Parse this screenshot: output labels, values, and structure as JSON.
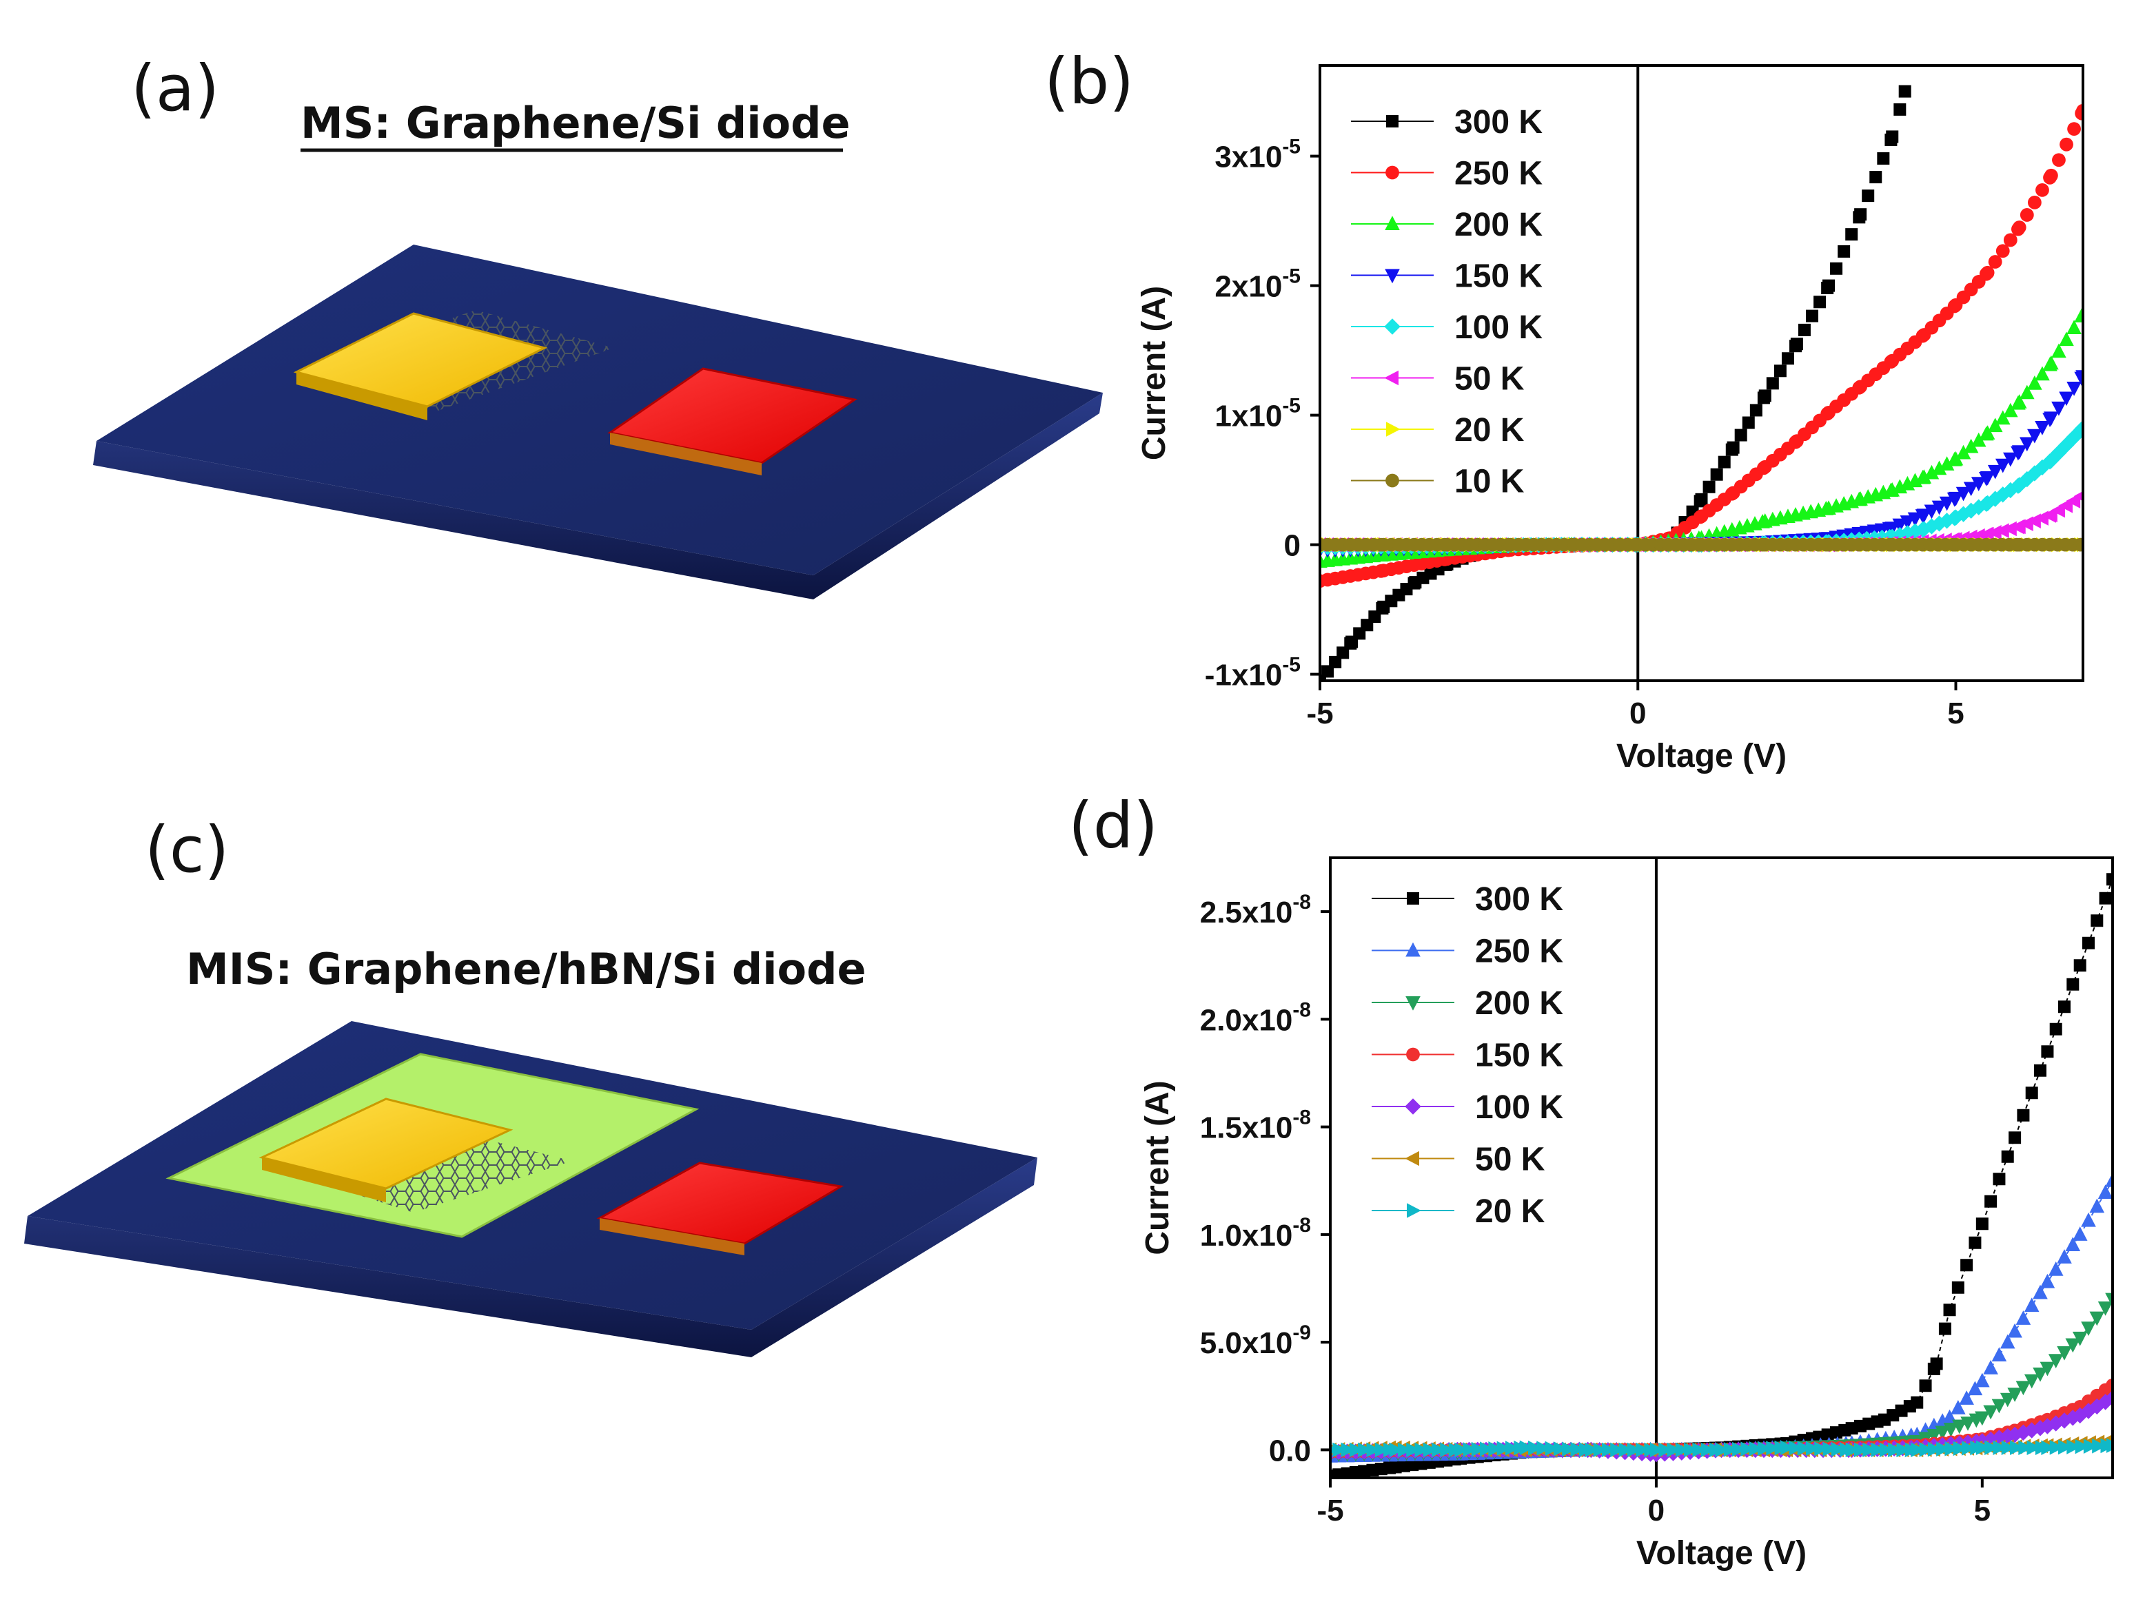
{
  "panels": {
    "a": {
      "label": "(a)",
      "title": "MS: Graphene/Si diode"
    },
    "b": {
      "label": "(b)"
    },
    "c": {
      "label": "(c)",
      "title": "MIS: Graphene/hBN/Si diode"
    },
    "d": {
      "label": "(d)"
    }
  },
  "colors": {
    "substrate": "#1b2a6b",
    "gold": "#f5c518",
    "red": "#ff1a1a",
    "hbn": "#b4f06a",
    "graphene": "#5a6470"
  },
  "chart_data": [
    {
      "panel": "b",
      "type": "scatter",
      "title": "",
      "xlabel": "Voltage (V)",
      "ylabel": "Current (A)",
      "xlim": [
        -5,
        7
      ],
      "ylim": [
        -1.05e-05,
        3.7e-05
      ],
      "xticks": [
        -5,
        0,
        5
      ],
      "xtick_labels": [
        "-5",
        "0",
        "5"
      ],
      "yticks": [
        -1e-05,
        0,
        1e-05,
        2e-05,
        3e-05
      ],
      "ytick_labels": [
        {
          "mant": "-1x10",
          "exp": "-5"
        },
        {
          "mant": "0",
          "exp": ""
        },
        {
          "mant": "1x10",
          "exp": "-5"
        },
        {
          "mant": "2x10",
          "exp": "-5"
        },
        {
          "mant": "3x10",
          "exp": "-5"
        }
      ],
      "legend": "top-left",
      "series": [
        {
          "name": "300 K",
          "color": "#000000",
          "marker": "square",
          "x": [
            -5,
            -4.5,
            -4,
            -3.5,
            -3,
            -2.5,
            -2,
            -1.5,
            -1,
            -0.5,
            0,
            0.5,
            1,
            1.5,
            2,
            2.5,
            3,
            3.5,
            4,
            4.2
          ],
          "y": [
            -1.05e-05,
            -7.5e-06,
            -4.8e-06,
            -2.9e-06,
            -1.5e-06,
            -6e-07,
            -2e-07,
            -5e-08,
            0,
            0,
            0,
            1e-07,
            3.5e-06,
            7.5e-06,
            1.15e-05,
            1.55e-05,
            2e-05,
            2.55e-05,
            3.15e-05,
            3.5e-05
          ]
        },
        {
          "name": "250 K",
          "color": "#ff1a1a",
          "marker": "circle",
          "x": [
            -5,
            -4,
            -3,
            -2,
            -1,
            0,
            0.5,
            1,
            1.5,
            2,
            2.5,
            3,
            3.5,
            4,
            4.5,
            5,
            5.5,
            6,
            6.5,
            7
          ],
          "y": [
            -2.8e-06,
            -2e-06,
            -1.1e-06,
            -4e-07,
            -8e-08,
            0,
            5e-07,
            2.2e-06,
            4e-06,
            6e-06,
            8e-06,
            1.02e-05,
            1.22e-05,
            1.42e-05,
            1.62e-05,
            1.85e-05,
            2.1e-05,
            2.45e-05,
            2.85e-05,
            3.35e-05
          ]
        },
        {
          "name": "200 K",
          "color": "#16f516",
          "marker": "triangle-up",
          "x": [
            -5,
            -4,
            -3,
            -2,
            -1,
            0,
            1,
            2,
            3,
            3.5,
            4,
            4.5,
            5,
            5.5,
            6,
            6.5,
            7
          ],
          "y": [
            -1.3e-06,
            -8e-07,
            -4e-07,
            -1e-07,
            0,
            0,
            5e-07,
            1.8e-06,
            2.8e-06,
            3.5e-06,
            4.2e-06,
            5.2e-06,
            6.6e-06,
            8.6e-06,
            1.1e-05,
            1.4e-05,
            1.78e-05
          ]
        },
        {
          "name": "150 K",
          "color": "#1010f0",
          "marker": "triangle-down",
          "x": [
            -5,
            -3,
            -1,
            0,
            1,
            2,
            3,
            4,
            4.5,
            5,
            5.5,
            6,
            6.5,
            7
          ],
          "y": [
            -4e-07,
            -2e-07,
            0,
            0,
            1e-07,
            2e-07,
            5e-07,
            1.3e-06,
            2.3e-06,
            3.6e-06,
            5.2e-06,
            7.2e-06,
            9.8e-06,
            1.3e-05
          ]
        },
        {
          "name": "100 K",
          "color": "#19e6e6",
          "marker": "diamond",
          "x": [
            -5,
            -3,
            -1,
            0,
            1,
            2,
            3,
            4,
            4.5,
            5,
            5.5,
            6,
            6.5,
            7
          ],
          "y": [
            -2e-07,
            -1e-07,
            0,
            0,
            0,
            1e-07,
            2e-07,
            6e-07,
            1.2e-06,
            2.1e-06,
            3.2e-06,
            4.6e-06,
            6.5e-06,
            9e-06
          ]
        },
        {
          "name": "50 K",
          "color": "#f01ff0",
          "marker": "triangle-left",
          "x": [
            -5,
            -3,
            -1,
            0,
            1,
            3,
            4,
            5,
            5.5,
            6,
            6.5,
            7
          ],
          "y": [
            0,
            0,
            0,
            0,
            0,
            0,
            1e-07,
            4e-07,
            8e-07,
            1.4e-06,
            2.3e-06,
            3.8e-06
          ]
        },
        {
          "name": "20 K",
          "color": "#f5f500",
          "marker": "triangle-right",
          "x": [
            -5,
            -4,
            -3,
            -2,
            -1,
            0,
            1,
            2,
            3,
            4,
            5,
            6,
            7
          ],
          "y": [
            0,
            0,
            0,
            0,
            0,
            0,
            0,
            0,
            0,
            0,
            0,
            0,
            0
          ]
        },
        {
          "name": "10 K",
          "color": "#8b7a1a",
          "marker": "circle",
          "x": [
            -5,
            -4,
            -3,
            -2,
            -1,
            0,
            1,
            2,
            3,
            4,
            5,
            6,
            7
          ],
          "y": [
            0,
            0,
            0,
            0,
            0,
            0,
            0,
            0,
            0,
            0,
            0,
            0,
            0
          ]
        }
      ]
    },
    {
      "panel": "d",
      "type": "line",
      "title": "",
      "xlabel": "Voltage (V)",
      "ylabel": "Current (A)",
      "xlim": [
        -5,
        7
      ],
      "ylim": [
        -1.3e-09,
        2.75e-08
      ],
      "xticks": [
        -5,
        0,
        5
      ],
      "xtick_labels": [
        "-5",
        "0",
        "5"
      ],
      "yticks": [
        0,
        5e-09,
        1e-08,
        1.5e-08,
        2e-08,
        2.5e-08
      ],
      "ytick_labels": [
        {
          "mant": "0.0",
          "exp": ""
        },
        {
          "mant": "5.0x10",
          "exp": "-9"
        },
        {
          "mant": "1.0x10",
          "exp": "-8"
        },
        {
          "mant": "1.5x10",
          "exp": "-8"
        },
        {
          "mant": "2.0x10",
          "exp": "-8"
        },
        {
          "mant": "2.5x10",
          "exp": "-8"
        }
      ],
      "legend": "top-left",
      "series": [
        {
          "name": "300 K",
          "color": "#000000",
          "marker": "square",
          "x": [
            -5,
            -4,
            -3,
            -2,
            -1,
            0,
            1,
            2,
            2.5,
            3,
            3.5,
            4,
            4.3,
            4.5,
            5,
            5.5,
            6,
            6.5,
            7
          ],
          "y": [
            -1.2e-09,
            -8e-10,
            -4e-10,
            -1e-10,
            0,
            0,
            1e-10,
            3e-10,
            6e-10,
            1e-09,
            1.4e-09,
            2.2e-09,
            4e-09,
            6.5e-09,
            1.05e-08,
            1.45e-08,
            1.85e-08,
            2.25e-08,
            2.65e-08
          ]
        },
        {
          "name": "250 K",
          "color": "#3c6cf0",
          "marker": "triangle-up",
          "x": [
            -5,
            -3,
            -1,
            0,
            1,
            2,
            3,
            4,
            4.5,
            5,
            5.5,
            6,
            6.5,
            7
          ],
          "y": [
            -3e-10,
            -2e-10,
            0,
            0,
            0,
            1e-10,
            3e-10,
            7e-10,
            1.5e-09,
            3.2e-09,
            5.5e-09,
            7.8e-09,
            1e-08,
            1.25e-08
          ]
        },
        {
          "name": "200 K",
          "color": "#249f5a",
          "marker": "triangle-down",
          "x": [
            -5,
            -3,
            -1,
            0,
            1,
            2,
            3,
            4,
            5,
            5.5,
            6,
            6.5,
            7
          ],
          "y": [
            -2e-10,
            -1e-10,
            0,
            0,
            0,
            1e-10,
            2e-10,
            4e-10,
            1.5e-09,
            2.6e-09,
            3.8e-09,
            5.2e-09,
            7e-09
          ]
        },
        {
          "name": "150 K",
          "color": "#f03030",
          "marker": "circle",
          "x": [
            -5,
            -3,
            -1,
            0,
            1,
            3,
            4,
            5,
            5.5,
            6,
            6.5,
            7
          ],
          "y": [
            -1e-10,
            0,
            0,
            0,
            0,
            1e-10,
            2e-10,
            5e-10,
            9e-10,
            1.4e-09,
            2e-09,
            3e-09
          ]
        },
        {
          "name": "100 K",
          "color": "#9030f0",
          "marker": "diamond",
          "x": [
            -5,
            -3,
            -1,
            0,
            1,
            3,
            4,
            5,
            5.5,
            6,
            6.5,
            7
          ],
          "y": [
            -1e-10,
            0,
            0,
            -2e-10,
            0,
            0,
            1e-10,
            4e-10,
            7e-10,
            1.1e-09,
            1.6e-09,
            2.4e-09
          ]
        },
        {
          "name": "50 K",
          "color": "#c08a10",
          "marker": "triangle-left",
          "x": [
            -5,
            -4,
            -3,
            -2,
            -1,
            0,
            1,
            2,
            3,
            4,
            5,
            6,
            7
          ],
          "y": [
            0,
            1e-10,
            0,
            0,
            0,
            0,
            0,
            0,
            0,
            0,
            1e-10,
            2e-10,
            4e-10
          ]
        },
        {
          "name": "20 K",
          "color": "#10b8c8",
          "marker": "triangle-right",
          "x": [
            -5,
            -4,
            -3,
            -2,
            -1,
            0,
            1,
            2,
            3,
            4,
            5,
            6,
            7
          ],
          "y": [
            0,
            0,
            0,
            1e-10,
            0,
            0,
            0,
            1e-10,
            0,
            0,
            1e-10,
            1e-10,
            2e-10
          ]
        }
      ]
    }
  ]
}
